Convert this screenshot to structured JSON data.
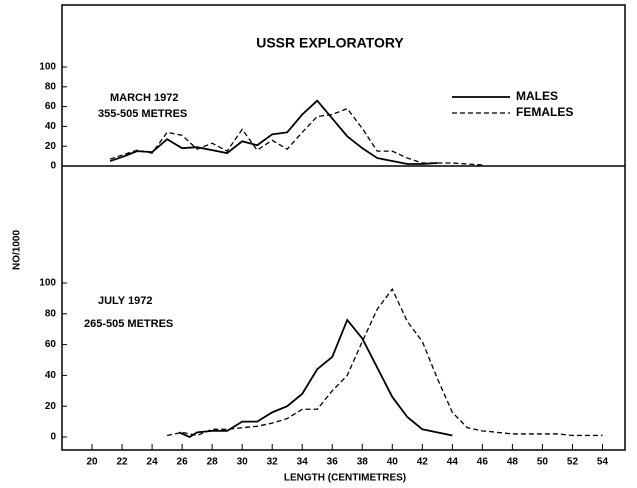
{
  "chart_data": [
    {
      "type": "line",
      "title": "USSR EXPLORATORY",
      "annotations": [
        "MARCH 1972",
        "355-505 METRES"
      ],
      "y_label": "NO/1000",
      "xlim": [
        18,
        55.5
      ],
      "ylim": [
        0,
        100
      ],
      "yticks": [
        0,
        20,
        40,
        60,
        80,
        100
      ],
      "legend": "upper right",
      "series": [
        {
          "name": "MALES",
          "color": "#000000",
          "dash": "solid",
          "x": [
            21.2,
            22,
            23,
            24,
            25,
            26,
            27,
            28,
            29,
            30,
            31,
            32,
            33,
            34,
            35,
            36,
            37,
            38,
            39,
            40,
            41,
            42,
            43
          ],
          "values": [
            5,
            9,
            15,
            14,
            27,
            18,
            19,
            16,
            13,
            25,
            21,
            32,
            34,
            52,
            66,
            48,
            30,
            18,
            8,
            5,
            2,
            2,
            3
          ]
        },
        {
          "name": "FEMALES",
          "color": "#000000",
          "dash": "dashed",
          "x": [
            21.2,
            22,
            23,
            24,
            25,
            26,
            27,
            28,
            29,
            30,
            31,
            32,
            33,
            34,
            35,
            36,
            37,
            38,
            39,
            40,
            41,
            42,
            43,
            44,
            45,
            46
          ],
          "values": [
            7,
            11,
            16,
            13,
            34,
            31,
            17,
            23,
            15,
            37,
            16,
            26,
            17,
            34,
            50,
            52,
            58,
            38,
            15,
            15,
            8,
            3,
            3,
            3,
            2,
            1
          ]
        }
      ]
    },
    {
      "type": "line",
      "annotations": [
        "JULY 1972",
        "265-505 METRES"
      ],
      "x_label": "LENGTH (CENTIMETRES)",
      "xlim": [
        18,
        55.5
      ],
      "ylim": [
        0,
        100
      ],
      "yticks": [
        0,
        20,
        40,
        60,
        80,
        100
      ],
      "xticks": [
        20,
        22,
        24,
        26,
        28,
        30,
        32,
        34,
        36,
        38,
        40,
        42,
        44,
        46,
        48,
        50,
        52,
        54
      ],
      "series": [
        {
          "color": "#000000",
          "dash": "solid",
          "x": [
            25.8,
            26.5,
            27,
            28,
            29,
            30,
            31,
            32,
            33,
            34,
            35,
            36,
            37,
            38,
            39,
            40,
            41,
            42,
            43,
            44
          ],
          "values": [
            3,
            0,
            3,
            4,
            4,
            10,
            10,
            16,
            20,
            28,
            44,
            52,
            76,
            64,
            45,
            26,
            13,
            5,
            3,
            1
          ]
        },
        {
          "color": "#000000",
          "dash": "dashed",
          "x": [
            25,
            26,
            27,
            28,
            29,
            30,
            31,
            32,
            33,
            34,
            35,
            36,
            37,
            38,
            39,
            40,
            41,
            42,
            43,
            44,
            45,
            46,
            47,
            48,
            49,
            50,
            51,
            52,
            53,
            54
          ],
          "values": [
            1,
            3,
            1,
            5,
            5,
            6,
            7,
            9,
            12,
            18,
            18,
            30,
            40,
            62,
            83,
            96,
            75,
            62,
            38,
            16,
            6,
            4,
            3,
            2,
            2,
            2,
            2,
            1,
            1,
            1
          ]
        }
      ]
    }
  ]
}
